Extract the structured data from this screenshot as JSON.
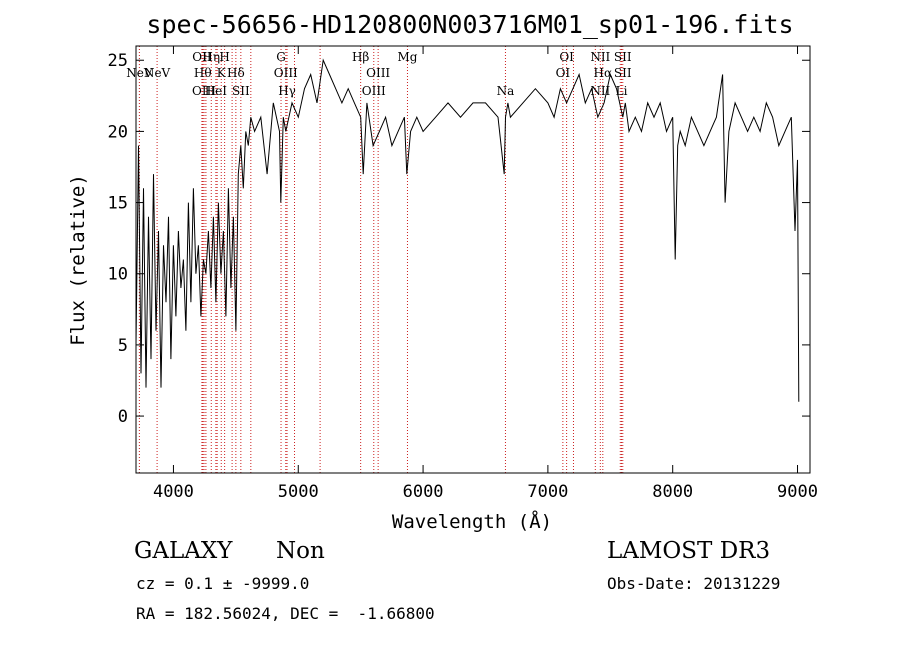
{
  "chart_data": {
    "type": "line",
    "title": "spec-56656-HD120800N003716M01_sp01-196.fits",
    "xlabel": "Wavelength (Å)",
    "ylabel": "Flux (relative)",
    "xlim": [
      3700,
      9100
    ],
    "ylim": [
      -4,
      26
    ],
    "xticks": [
      4000,
      5000,
      6000,
      7000,
      8000,
      9000
    ],
    "yticks": [
      0,
      5,
      10,
      15,
      20,
      25
    ],
    "series": [
      {
        "name": "flux",
        "x": [
          3700,
          3720,
          3740,
          3760,
          3780,
          3800,
          3820,
          3840,
          3860,
          3880,
          3900,
          3920,
          3940,
          3960,
          3980,
          4000,
          4020,
          4040,
          4060,
          4080,
          4100,
          4120,
          4140,
          4160,
          4180,
          4200,
          4220,
          4240,
          4260,
          4280,
          4300,
          4320,
          4340,
          4360,
          4380,
          4400,
          4420,
          4440,
          4460,
          4480,
          4500,
          4520,
          4540,
          4560,
          4580,
          4600,
          4620,
          4650,
          4700,
          4750,
          4800,
          4850,
          4860,
          4880,
          4900,
          4950,
          5000,
          5050,
          5100,
          5150,
          5200,
          5250,
          5300,
          5350,
          5400,
          5450,
          5500,
          5520,
          5550,
          5600,
          5650,
          5700,
          5750,
          5800,
          5850,
          5870,
          5900,
          5950,
          6000,
          6100,
          6200,
          6300,
          6400,
          6500,
          6600,
          6650,
          6660,
          6680,
          6700,
          6800,
          6900,
          7000,
          7050,
          7100,
          7150,
          7200,
          7250,
          7300,
          7350,
          7400,
          7450,
          7500,
          7550,
          7600,
          7620,
          7650,
          7700,
          7750,
          7800,
          7850,
          7900,
          7950,
          8000,
          8020,
          8040,
          8060,
          8100,
          8150,
          8200,
          8250,
          8300,
          8350,
          8400,
          8420,
          8450,
          8500,
          8550,
          8600,
          8650,
          8700,
          8750,
          8800,
          8850,
          8900,
          8950,
          8980,
          9000,
          9010
        ],
        "y": [
          5,
          19,
          3,
          16,
          2,
          14,
          4,
          17,
          6,
          13,
          2,
          12,
          8,
          14,
          4,
          12,
          7,
          13,
          9,
          11,
          6,
          15,
          8,
          16,
          10,
          12,
          7,
          11,
          10,
          13,
          9,
          14,
          8,
          15,
          10,
          13,
          7,
          16,
          9,
          14,
          6,
          17,
          19,
          16,
          20,
          19,
          21,
          20,
          21,
          17,
          22,
          20,
          15,
          21,
          20,
          22,
          21,
          23,
          24,
          22,
          25,
          24,
          23,
          22,
          23,
          22,
          21,
          17,
          22,
          19,
          20,
          21,
          19,
          20,
          21,
          17,
          20,
          21,
          20,
          21,
          22,
          21,
          22,
          22,
          21,
          17,
          21,
          22,
          21,
          22,
          23,
          22,
          21,
          23,
          22,
          23,
          24,
          22,
          23,
          21,
          22,
          24,
          23,
          21,
          22,
          20,
          21,
          20,
          22,
          21,
          22,
          20,
          21,
          11,
          19,
          20,
          19,
          21,
          20,
          19,
          20,
          21,
          24,
          15,
          20,
          22,
          21,
          20,
          21,
          20,
          22,
          21,
          19,
          20,
          21,
          13,
          18,
          1
        ]
      }
    ],
    "emission_lines": [
      {
        "x": 3727,
        "row": 1,
        "label": "NeV"
      },
      {
        "x": 3869,
        "row": 2,
        "label": "NeV"
      },
      {
        "x": 4228,
        "row": 0,
        "label": "OII"
      },
      {
        "x": 4235,
        "row": 1,
        "label": "Hθ"
      },
      {
        "x": 4245,
        "row": 3,
        "label": "OIII"
      },
      {
        "x": 4303,
        "row": 0,
        "label": "Hη"
      },
      {
        "x": 4340,
        "row": 3,
        "label": "HeI"
      },
      {
        "x": 4383,
        "row": 1,
        "label": "K"
      },
      {
        "x": 4410,
        "row": 0,
        "label": "H"
      },
      {
        "x": 4500,
        "row": 2,
        "label": "Hδ"
      },
      {
        "x": 4540,
        "row": 3,
        "label": "SII"
      },
      {
        "x": 4862,
        "row": 0,
        "label": "G"
      },
      {
        "x": 4900,
        "row": 2,
        "label": "OIII"
      },
      {
        "x": 4910,
        "row": 3,
        "label": "Hγ"
      },
      {
        "x": 5500,
        "row": 0,
        "label": "Hβ"
      },
      {
        "x": 5640,
        "row": 2,
        "label": "OIII"
      },
      {
        "x": 5605,
        "row": 3,
        "label": "OIII"
      },
      {
        "x": 5875,
        "row": 0,
        "label": "Mg"
      },
      {
        "x": 6660,
        "row": 3,
        "label": "Na"
      },
      {
        "x": 7150,
        "row": 0,
        "label": "OI"
      },
      {
        "x": 7120,
        "row": 2,
        "label": "OI"
      },
      {
        "x": 7420,
        "row": 0,
        "label": "NII"
      },
      {
        "x": 7440,
        "row": 2,
        "label": "Hα"
      },
      {
        "x": 7420,
        "row": 3,
        "label": "NII"
      },
      {
        "x": 7600,
        "row": 0,
        "label": "SII"
      },
      {
        "x": 7600,
        "row": 2,
        "label": "SII"
      },
      {
        "x": 7590,
        "row": 3,
        "label": "Li"
      }
    ],
    "extra_lines_x": [
      4260,
      4350,
      4470,
      4620,
      4970,
      5175,
      7205,
      7380,
      7580
    ]
  },
  "info": {
    "class": "GALAXY",
    "subclass": "Non",
    "survey": "LAMOST DR3",
    "cz": "cz = 0.1 ± -9999.0",
    "obs_date": "Obs-Date: 20131229",
    "coords": "RA = 182.56024, DEC =  -1.66800"
  }
}
